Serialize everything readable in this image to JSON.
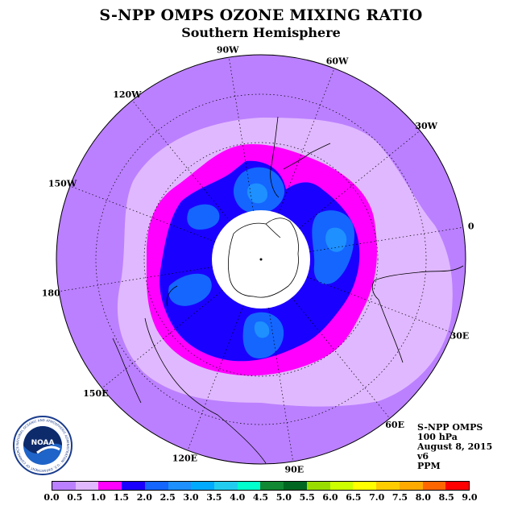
{
  "title": "S-NPP OMPS OZONE MIXING RATIO",
  "subtitle": "Southern Hemisphere",
  "longitude_labels": [
    {
      "label": "90W",
      "angle": 261
    },
    {
      "label": "60W",
      "angle": 291
    },
    {
      "label": "30W",
      "angle": 321
    },
    {
      "label": "0",
      "angle": 351
    },
    {
      "label": "30E",
      "angle": 21
    },
    {
      "label": "60E",
      "angle": 51
    },
    {
      "label": "90E",
      "angle": 81
    },
    {
      "label": "120E",
      "angle": 111
    },
    {
      "label": "150E",
      "angle": 141
    },
    {
      "label": "180",
      "angle": 171
    },
    {
      "label": "150W",
      "angle": 201
    },
    {
      "label": "120W",
      "angle": 231
    }
  ],
  "info": {
    "instrument": "S-NPP OMPS",
    "level": "100 hPa",
    "date": "August 8, 2015",
    "version": "v6",
    "units": "PPM"
  },
  "logo": {
    "text": "NOAA",
    "ring_text": "NATIONAL OCEANIC AND ATMOSPHERIC ADMINISTRATION · U.S. DEPARTMENT OF COMMERCE"
  },
  "colorbar": {
    "ticks": [
      "0.0",
      "0.5",
      "1.0",
      "1.5",
      "2.0",
      "2.5",
      "3.0",
      "3.5",
      "4.0",
      "4.5",
      "5.0",
      "5.5",
      "6.0",
      "6.5",
      "7.0",
      "7.5",
      "8.0",
      "8.5",
      "9.0"
    ],
    "colors": [
      "#bb80ff",
      "#e0b8ff",
      "#ff00ff",
      "#1a00ff",
      "#1466ff",
      "#1e90ff",
      "#00aaff",
      "#22ccee",
      "#00ffcc",
      "#118833",
      "#006622",
      "#99dd00",
      "#ccff00",
      "#ffff00",
      "#ffcc00",
      "#ffaa00",
      "#ff6600",
      "#ff0000",
      "#995533"
    ]
  },
  "field_colors": {
    "background": "#bb80ff",
    "band_0_5": "#e0b8ff",
    "band_1_0": "#ff00ff",
    "band_1_5": "#1a00ff",
    "band_2_0": "#1466ff",
    "band_2_5": "#1e90ff",
    "pole_fill": "#ffffff"
  }
}
